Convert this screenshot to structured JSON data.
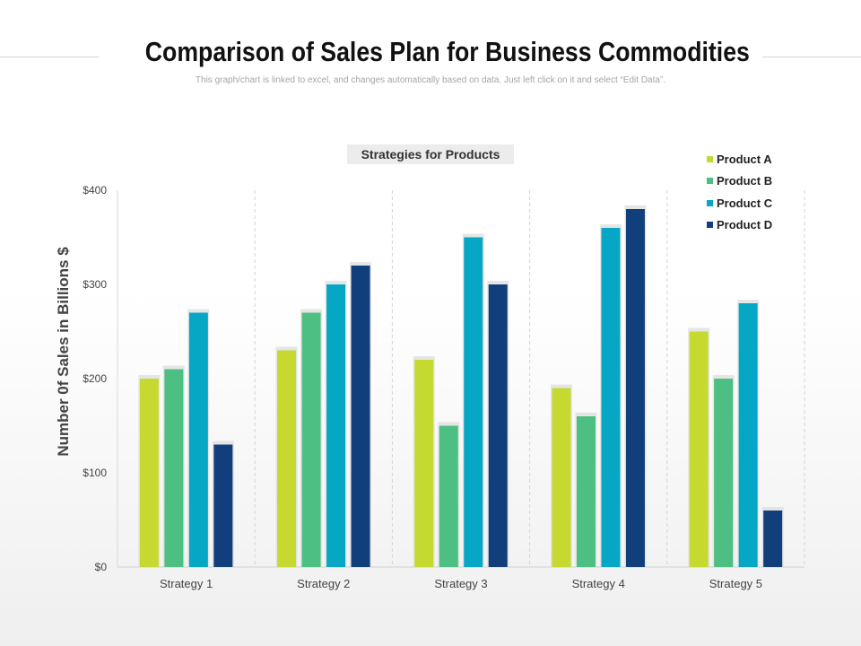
{
  "header": {
    "title": "Comparison of Sales Plan for Business Commodities",
    "subtitle": "This graph/chart is linked to excel, and changes automatically based on data. Just left click on it and select “Edit Data”."
  },
  "chart_data": {
    "type": "bar",
    "title": "Strategies for Products",
    "ylabel": "Number 0f Sales in Billions  $",
    "xlabel": "",
    "ylim": [
      0,
      400
    ],
    "yticks": [
      0,
      100,
      200,
      300,
      400
    ],
    "ytick_labels": [
      "$0",
      "$100",
      "$200",
      "$300",
      "$400"
    ],
    "categories": [
      "Strategy 1",
      "Strategy 2",
      "Strategy 3",
      "Strategy 4",
      "Strategy 5"
    ],
    "series": [
      {
        "name": "Product A",
        "color": "#c5d931",
        "values": [
          200,
          230,
          220,
          190,
          250
        ]
      },
      {
        "name": "Product B",
        "color": "#4dbf82",
        "values": [
          210,
          270,
          150,
          160,
          200
        ]
      },
      {
        "name": "Product C",
        "color": "#05a7c4",
        "values": [
          270,
          300,
          350,
          360,
          280
        ]
      },
      {
        "name": "Product D",
        "color": "#103f7c",
        "values": [
          130,
          320,
          300,
          380,
          60
        ]
      }
    ],
    "legend_position": "top-right",
    "grid": "vertical dashed separators"
  }
}
